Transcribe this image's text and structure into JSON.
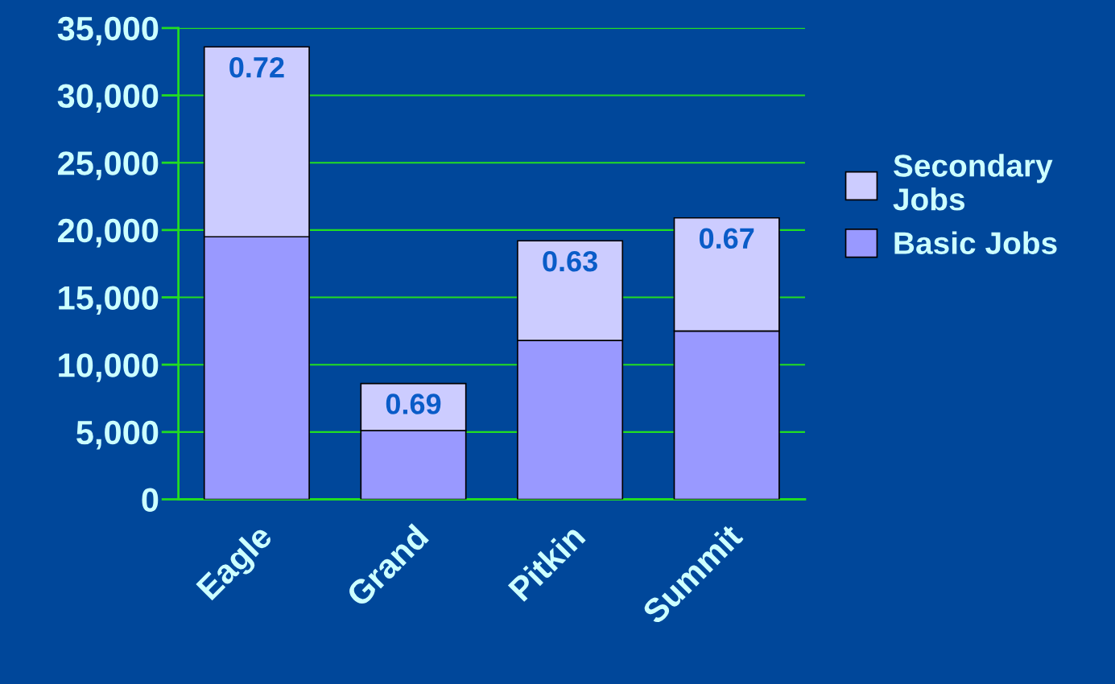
{
  "chart_data": {
    "type": "bar",
    "stacked": true,
    "categories": [
      "Eagle",
      "Grand",
      "Pitkin",
      "Summit"
    ],
    "series": [
      {
        "name": "Basic Jobs",
        "color": "#9999ff",
        "values": [
          19500,
          5100,
          11800,
          12500
        ]
      },
      {
        "name": "Secondary Jobs",
        "color": "#ccccff",
        "values": [
          14100,
          3500,
          7400,
          8400
        ]
      }
    ],
    "annotations": [
      {
        "text": "0.72",
        "x": "Eagle",
        "y": 33600
      },
      {
        "text": "0.69",
        "x": "Grand",
        "y": 8600
      },
      {
        "text": "0.63",
        "x": "Pitkin",
        "y": 19200
      },
      {
        "text": "0.67",
        "x": "Summit",
        "y": 20900
      }
    ],
    "ylim": [
      0,
      35000
    ],
    "yticks": [
      {
        "value": 0,
        "label": "0"
      },
      {
        "value": 5000,
        "label": "5,000"
      },
      {
        "value": 10000,
        "label": "10,000"
      },
      {
        "value": 15000,
        "label": "15,000"
      },
      {
        "value": 20000,
        "label": "20,000"
      },
      {
        "value": 25000,
        "label": "25,000"
      },
      {
        "value": 30000,
        "label": "30,000"
      },
      {
        "value": 35000,
        "label": "35,000"
      }
    ],
    "grid": "y",
    "legend": "right"
  }
}
